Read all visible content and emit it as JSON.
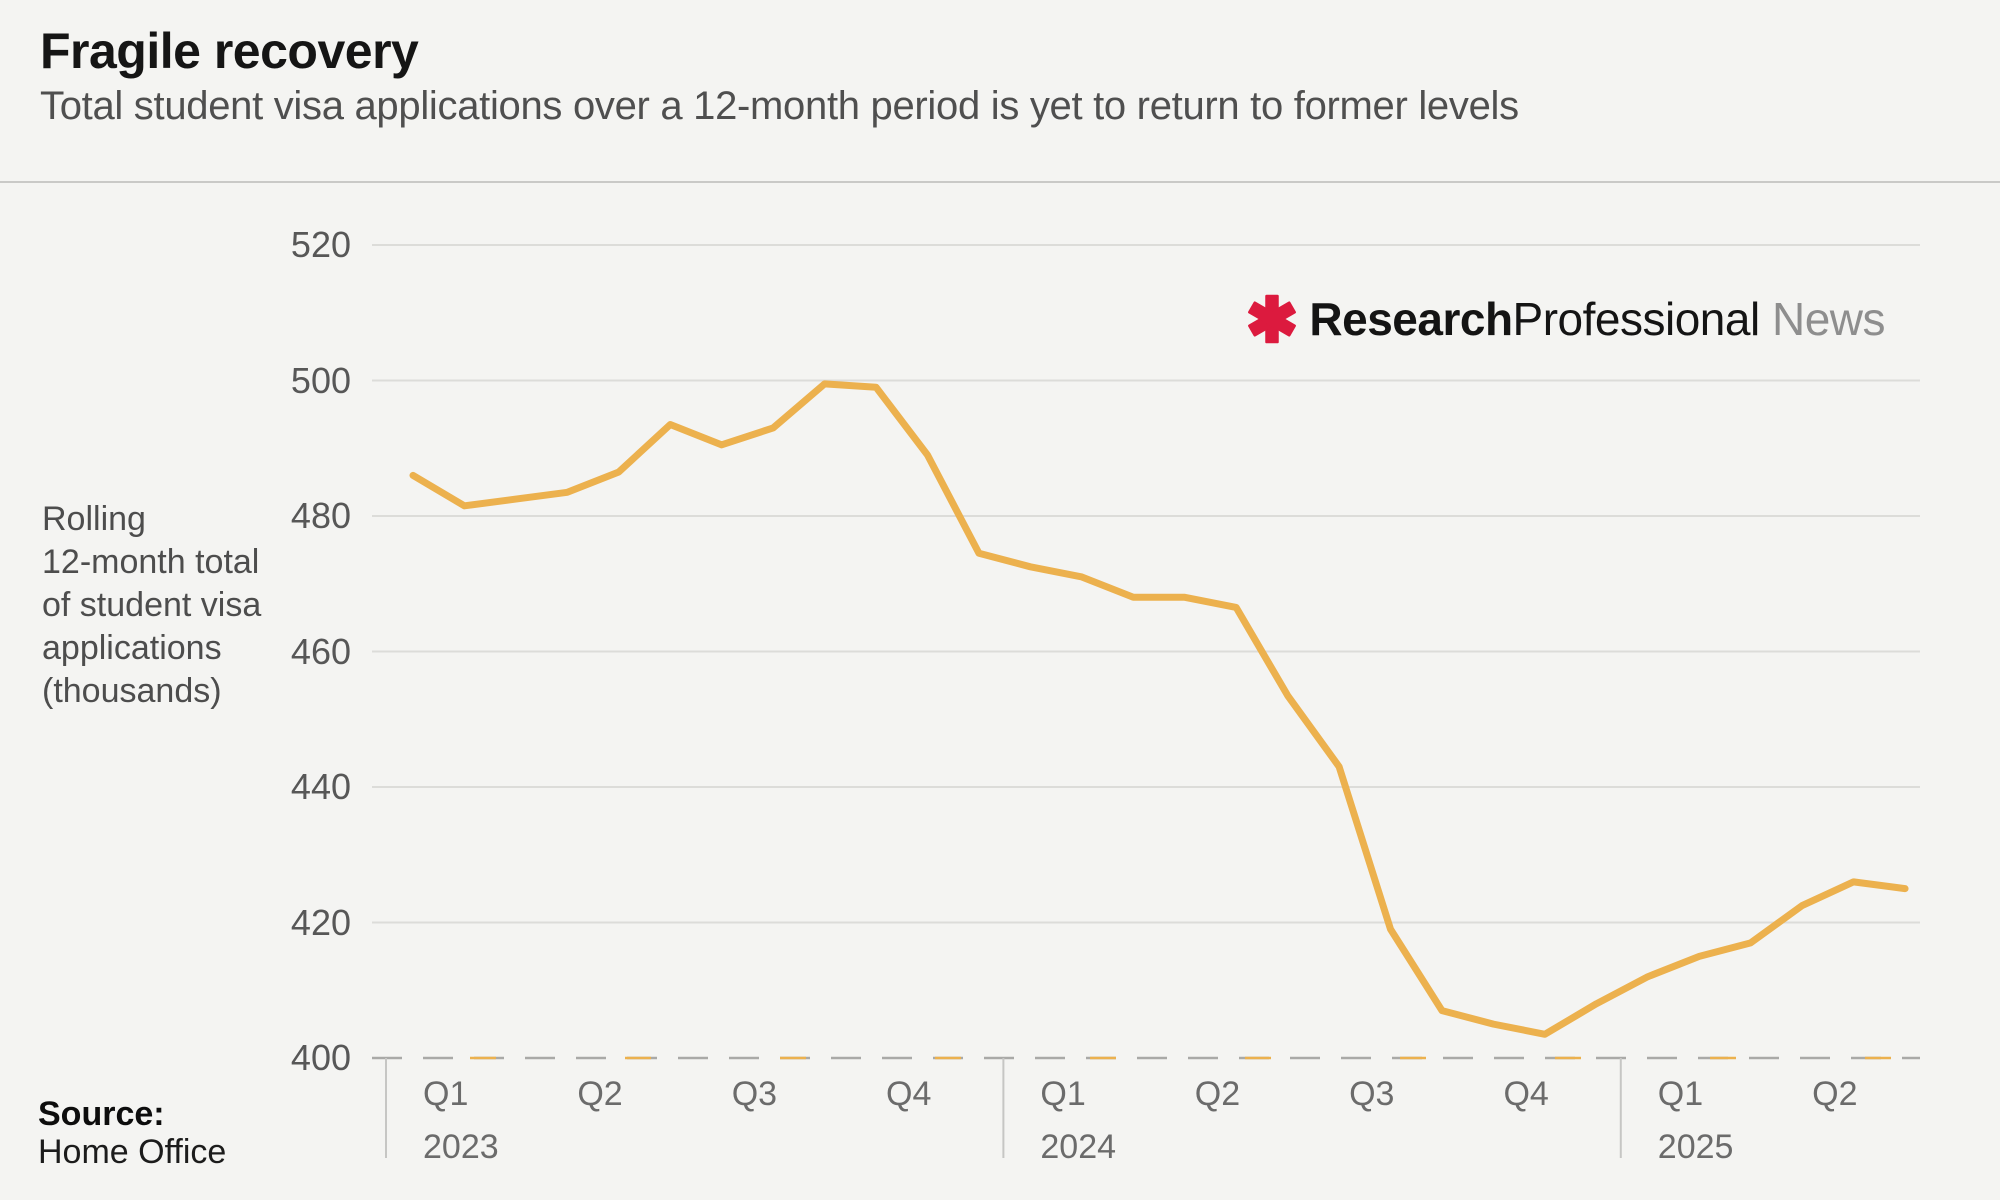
{
  "header": {
    "title": "Fragile recovery",
    "subtitle": "Total student visa applications over a 12-month period is yet to return to former levels"
  },
  "branding": {
    "asterisk_color": "#dc1a3e",
    "word_research": "Research",
    "word_professional": "Professional",
    "word_news": "News"
  },
  "source": {
    "label": "Source:",
    "value": "Home Office"
  },
  "colors": {
    "background": "#f4f4f2",
    "line": "#ecb14e",
    "gridline": "#dcdcd9",
    "baseline_dash": "#a9a9a7",
    "year_tick": "#c6c6c4"
  },
  "chart_data": {
    "type": "line",
    "title": "Fragile recovery",
    "subtitle": "Total student visa applications over a 12-month period is yet to return to former levels",
    "ylabel": "Rolling\n12-month total\nof student visa\napplications\n(thousands)",
    "unit": "thousands",
    "ylim": [
      400,
      520
    ],
    "y_ticks": [
      520,
      500,
      480,
      460,
      440,
      420,
      400
    ],
    "grid": "horizontal solid gridlines; dashed baseline at 400",
    "legend_position": "none",
    "x_groups": [
      {
        "year": "2023",
        "quarters": [
          "Q1",
          "Q2",
          "Q3",
          "Q4"
        ],
        "start_month_index": 0
      },
      {
        "year": "2024",
        "quarters": [
          "Q1",
          "Q2",
          "Q3",
          "Q4"
        ],
        "start_month_index": 12
      },
      {
        "year": "2025",
        "quarters": [
          "Q1",
          "Q2"
        ],
        "start_month_index": 24
      }
    ],
    "x_monthly": [
      "Jan 2023",
      "Feb 2023",
      "Mar 2023",
      "Apr 2023",
      "May 2023",
      "Jun 2023",
      "Jul 2023",
      "Aug 2023",
      "Sep 2023",
      "Oct 2023",
      "Nov 2023",
      "Dec 2023",
      "Jan 2024",
      "Feb 2024",
      "Mar 2024",
      "Apr 2024",
      "May 2024",
      "Jun 2024",
      "Jul 2024",
      "Aug 2024",
      "Sep 2024",
      "Oct 2024",
      "Nov 2024",
      "Dec 2024",
      "Jan 2025",
      "Feb 2025",
      "Mar 2025",
      "Apr 2025",
      "May 2025",
      "Jun 2025"
    ],
    "series": [
      {
        "name": "Rolling 12-month total of student visa applications (thousands)",
        "color": "#ecb14e",
        "values": [
          486,
          481.5,
          482.5,
          483.5,
          486.5,
          493.5,
          490.5,
          493,
          499.5,
          499,
          489,
          474.5,
          472.5,
          471,
          468,
          468,
          466.5,
          453.5,
          443,
          419,
          407,
          405,
          403.5,
          408,
          412,
          415,
          417,
          422.5,
          426,
          425
        ]
      }
    ]
  }
}
